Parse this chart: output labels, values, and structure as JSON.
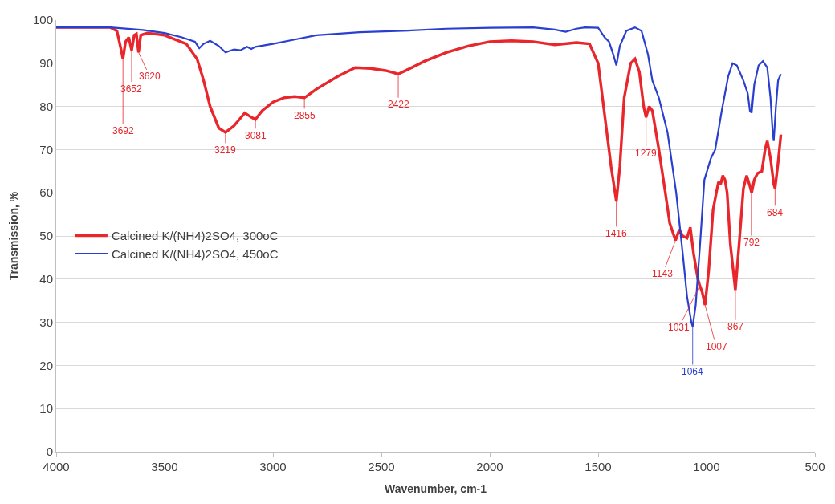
{
  "chart_data": {
    "type": "line",
    "xlabel": "Wavenumber, cm-1",
    "ylabel": "Transmission, %",
    "xlim": [
      4000,
      500
    ],
    "xticks": [
      4000,
      3500,
      3000,
      2500,
      2000,
      1500,
      1000,
      500
    ],
    "ylim": [
      0,
      100
    ],
    "yticks": [
      0,
      10,
      20,
      30,
      40,
      50,
      60,
      70,
      80,
      90,
      100
    ],
    "grid": "y",
    "legend": "center left",
    "marker": "none",
    "line_style": "solid",
    "series": [
      {
        "name": "Calcined K/(NH4)2SO4, 300oC",
        "color": "#e8262b",
        "x": [
          4000,
          3750,
          3720,
          3700,
          3692,
          3680,
          3665,
          3652,
          3640,
          3630,
          3620,
          3610,
          3580,
          3500,
          3400,
          3350,
          3320,
          3290,
          3250,
          3219,
          3180,
          3130,
          3100,
          3081,
          3050,
          3000,
          2950,
          2900,
          2855,
          2800,
          2700,
          2620,
          2550,
          2480,
          2422,
          2380,
          2300,
          2200,
          2100,
          2000,
          1900,
          1800,
          1700,
          1600,
          1540,
          1500,
          1470,
          1440,
          1416,
          1400,
          1380,
          1350,
          1330,
          1310,
          1290,
          1279,
          1265,
          1250,
          1220,
          1190,
          1170,
          1150,
          1143,
          1125,
          1110,
          1090,
          1075,
          1060,
          1040,
          1031,
          1020,
          1007,
          990,
          970,
          955,
          945,
          935,
          925,
          915,
          905,
          890,
          867,
          850,
          830,
          815,
          800,
          792,
          780,
          765,
          745,
          730,
          720,
          705,
          690,
          684,
          670,
          657
        ],
        "values": [
          98.3,
          98.3,
          97.5,
          93,
          91,
          95,
          96,
          93,
          96.5,
          96.8,
          92.5,
          96.5,
          97,
          96.5,
          94.5,
          91,
          86,
          80,
          75,
          74,
          75.5,
          78.5,
          77.5,
          77,
          79,
          81,
          82,
          82.3,
          82,
          84,
          87,
          89,
          88.8,
          88.3,
          87.5,
          88.5,
          90.5,
          92.5,
          94,
          95,
          95.2,
          95,
          94.3,
          94.8,
          94.5,
          90,
          78,
          66,
          58,
          66,
          82,
          90,
          91,
          88,
          80,
          77.5,
          80,
          79,
          70,
          60,
          53,
          50,
          49,
          51.5,
          50,
          49.5,
          52,
          46,
          40,
          38.5,
          37,
          34,
          42,
          56,
          60,
          62.5,
          62,
          64,
          63,
          60,
          48,
          37.5,
          48,
          61,
          64,
          61.5,
          60,
          63,
          64.5,
          65,
          70,
          72,
          68,
          62,
          61,
          67,
          73.5
        ]
      },
      {
        "name": "Calcined K/(NH4)2SO4, 450oC",
        "color": "#2a3fd0",
        "x": [
          4000,
          3750,
          3600,
          3500,
          3420,
          3360,
          3340,
          3320,
          3290,
          3250,
          3219,
          3180,
          3150,
          3120,
          3100,
          3081,
          3000,
          2900,
          2800,
          2600,
          2400,
          2200,
          2000,
          1800,
          1700,
          1650,
          1600,
          1560,
          1500,
          1470,
          1450,
          1430,
          1416,
          1400,
          1370,
          1330,
          1300,
          1270,
          1250,
          1220,
          1180,
          1140,
          1110,
          1090,
          1070,
          1064,
          1050,
          1030,
          1010,
          980,
          960,
          930,
          900,
          880,
          860,
          830,
          810,
          800,
          792,
          780,
          760,
          740,
          720,
          705,
          695,
          690,
          680,
          670,
          657
        ],
        "values": [
          98.3,
          98.3,
          97.7,
          97,
          96,
          95,
          93.5,
          94.5,
          95.2,
          94,
          92.5,
          93.2,
          93,
          93.8,
          93.3,
          93.8,
          94.5,
          95.5,
          96.5,
          97.2,
          97.5,
          98,
          98.2,
          98.3,
          97.8,
          97.3,
          98,
          98.3,
          98.2,
          96,
          95,
          92,
          89.5,
          94,
          97.5,
          98.3,
          97.5,
          92,
          86,
          82,
          74,
          60,
          46,
          36,
          30,
          29,
          34,
          48,
          63,
          68,
          70,
          79,
          87,
          90,
          89.5,
          86,
          83,
          79,
          78.5,
          85,
          89.5,
          90.5,
          89,
          82,
          74,
          72,
          80,
          86,
          87.5
        ]
      }
    ],
    "annotations": [
      {
        "text": "3692",
        "x": 3692,
        "y": 91
      },
      {
        "text": "3652",
        "x": 3652,
        "y": 93
      },
      {
        "text": "3620",
        "x": 3620,
        "y": 92.5
      },
      {
        "text": "3219",
        "x": 3219,
        "y": 74
      },
      {
        "text": "3081",
        "x": 3081,
        "y": 77
      },
      {
        "text": "2855",
        "x": 2855,
        "y": 82
      },
      {
        "text": "2422",
        "x": 2422,
        "y": 87.5
      },
      {
        "text": "1416",
        "x": 1416,
        "y": 58
      },
      {
        "text": "1279",
        "x": 1279,
        "y": 77.5
      },
      {
        "text": "1143",
        "x": 1143,
        "y": 49
      },
      {
        "text": "1031",
        "x": 1031,
        "y": 38.5
      },
      {
        "text": "1064",
        "x": 1064,
        "y": 29
      },
      {
        "text": "1007",
        "x": 1007,
        "y": 34
      },
      {
        "text": "867",
        "x": 867,
        "y": 37.5
      },
      {
        "text": "792",
        "x": 792,
        "y": 60
      },
      {
        "text": "684",
        "x": 684,
        "y": 61
      }
    ]
  }
}
